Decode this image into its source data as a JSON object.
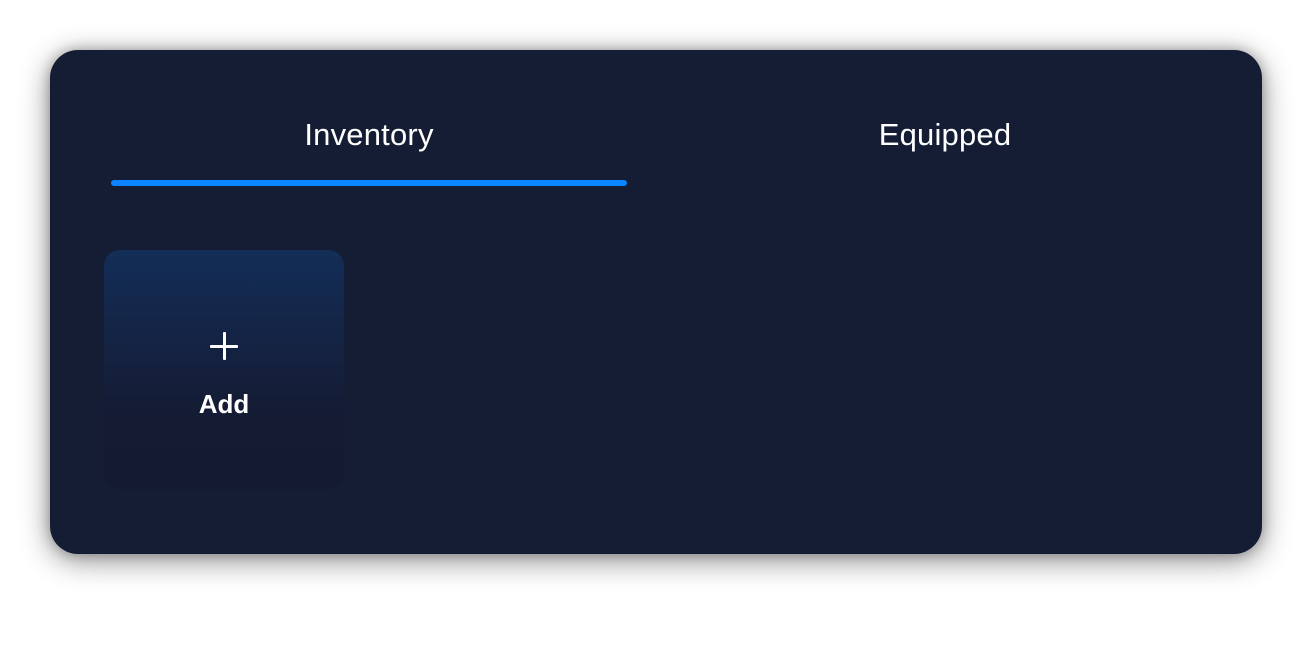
{
  "tabs": [
    {
      "label": "Inventory",
      "selected": true
    },
    {
      "label": "Equipped",
      "selected": false
    }
  ],
  "inventory": {
    "add_tile": {
      "icon": "plus-icon",
      "label": "Add"
    }
  },
  "colors": {
    "panel_background": "#151d34",
    "tab_indicator": "#0a84ff",
    "text": "#ffffff",
    "tile_gradient_top": "#132e57",
    "tile_gradient_bottom": "#131a31"
  }
}
